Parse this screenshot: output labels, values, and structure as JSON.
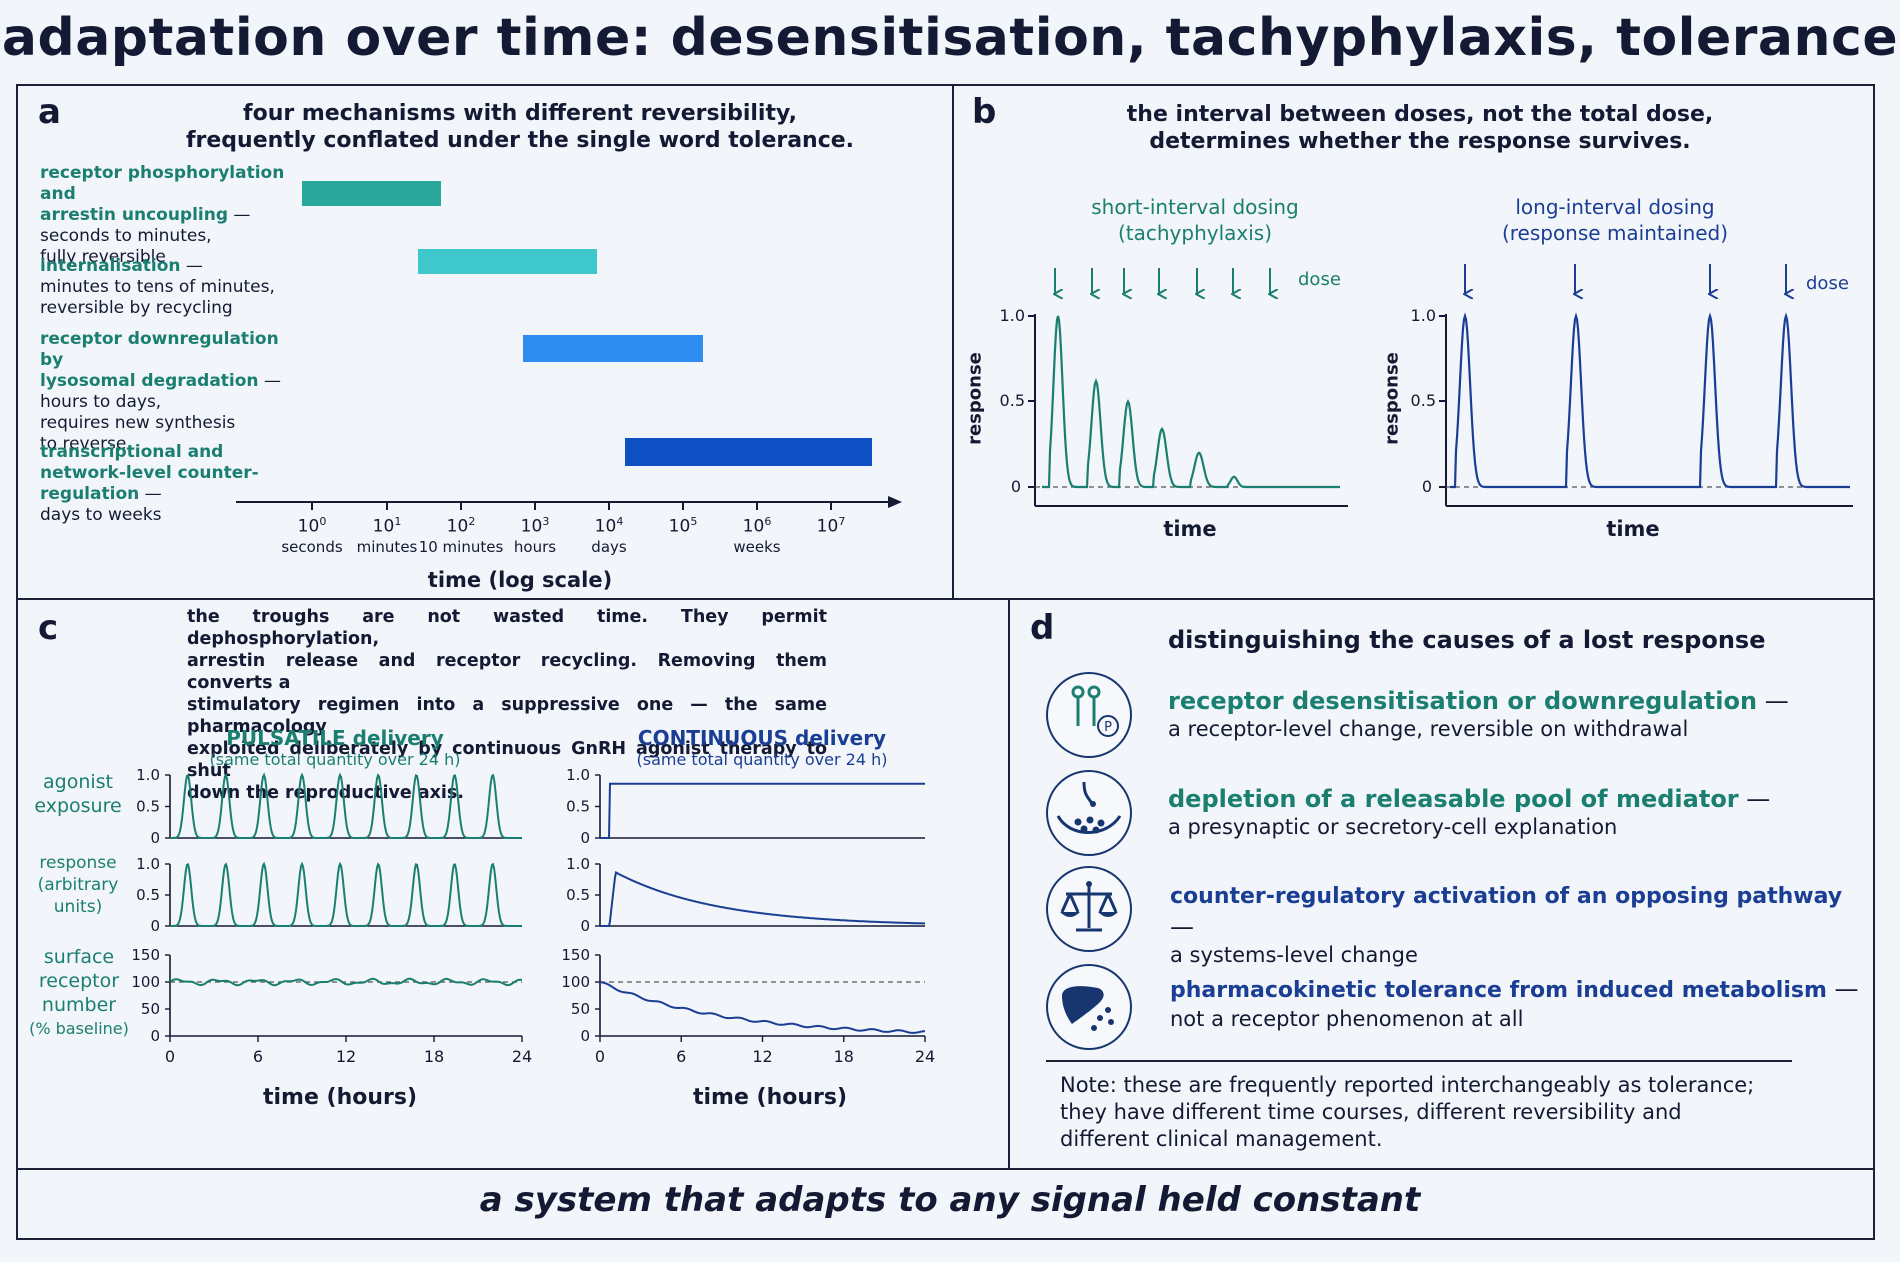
{
  "page": {
    "title": "adaptation over time: desensitisation, tachyphylaxis, tolerance",
    "footer": "a system that adapts to any signal held constant"
  },
  "colors": {
    "teal": "#1a7f70",
    "navy": "#1b3e95",
    "bar1": "#2aa79b",
    "bar2": "#3ec8cc",
    "bar3": "#2f8cf0",
    "bar4": "#0f4fc4",
    "frame": "#1b2237",
    "background": "#f2f5f9"
  },
  "panel_a": {
    "label": "a",
    "title_line1": "four mechanisms with different reversibility,",
    "title_line2": "frequently conflated under the single word tolerance.",
    "mechanisms": [
      {
        "highlight": [
          "receptor phosphorylation and",
          "arrestin uncoupling"
        ],
        "detail": [
          "seconds to minutes,",
          "fully reversible"
        ]
      },
      {
        "highlight": [
          "internalisation"
        ],
        "detail": [
          "minutes to tens of minutes,",
          "reversible by recycling"
        ]
      },
      {
        "highlight": [
          "receptor downregulation by",
          "lysosomal degradation"
        ],
        "detail": [
          "hours to days,",
          "requires new synthesis",
          "to reverse"
        ]
      },
      {
        "highlight": [
          "transcriptional and",
          "network-level counter-",
          "regulation"
        ],
        "detail": [
          "days to weeks"
        ]
      }
    ],
    "axis_label": "time (log scale)",
    "ticks": [
      {
        "exp": "0",
        "unit": "seconds"
      },
      {
        "exp": "1",
        "unit": "minutes"
      },
      {
        "exp": "2",
        "unit": "10 minutes"
      },
      {
        "exp": "3",
        "unit": "hours"
      },
      {
        "exp": "4",
        "unit": "days"
      },
      {
        "exp": "5",
        "unit": ""
      },
      {
        "exp": "6",
        "unit": "weeks"
      },
      {
        "exp": "7",
        "unit": ""
      }
    ]
  },
  "panel_b": {
    "label": "b",
    "title_line1": "the interval between doses, not the total dose,",
    "title_line2": "determines whether the response survives.",
    "left_title_line1": "short-interval dosing",
    "left_title_line2": "(tachyphylaxis)",
    "right_title_line1": "long-interval dosing",
    "right_title_line2": "(response maintained)",
    "dose_label": "dose",
    "y_label": "response",
    "x_label": "time",
    "yticks": [
      "1.0",
      "0.5",
      "0"
    ]
  },
  "panel_c": {
    "label": "c",
    "note_lines": [
      "the troughs are not wasted time. They permit dephosphorylation,",
      "arrestin release and receptor recycling. Removing them converts a",
      "stimulatory regimen into a suppressive one — the same pharmacology",
      "exploited deliberately by continuous GnRH agonist therapy to shut",
      "down the reproductive axis."
    ],
    "pulsatile_title": "PULSATILE delivery",
    "pulsatile_sub": "(same total quantity over 24 h)",
    "continuous_title": "CONTINUOUS delivery",
    "continuous_sub": "(same total quantity over 24 h)",
    "row_labels": [
      [
        "agonist",
        "exposure"
      ],
      [
        "response",
        "(arbitrary",
        "units)"
      ],
      [
        "surface",
        "receptor",
        "number",
        "(% baseline)"
      ]
    ],
    "ticks_01": [
      "1.0",
      "0.5",
      "0"
    ],
    "ticks_pct": [
      "150",
      "100",
      "50",
      "0"
    ],
    "xticks": [
      "0",
      "6",
      "12",
      "18",
      "24"
    ],
    "x_label": "time (hours)"
  },
  "panel_d": {
    "label": "d",
    "title": "distinguishing the causes of a lost response",
    "causes": [
      {
        "icon": "receptor-phospho-icon",
        "head": "receptor desensitisation or downregulation",
        "dash": " —",
        "detail": "a receptor-level change, reversible on withdrawal",
        "color": "teal"
      },
      {
        "icon": "vesicle-release-icon",
        "head": "depletion of a releasable pool of mediator",
        "dash": " —",
        "detail": "a presynaptic or secretory-cell explanation",
        "color": "teal"
      },
      {
        "icon": "balance-scale-icon",
        "head": "counter-regulatory activation of an opposing pathway",
        "dash": " —",
        "detail": "a systems-level change",
        "color": "navy"
      },
      {
        "icon": "liver-icon",
        "head": "pharmacokinetic tolerance from induced metabolism",
        "dash": " —",
        "detail": "not a receptor phenomenon at all",
        "color": "navy"
      }
    ],
    "note_lines": [
      "Note: these are frequently reported interchangeably as tolerance;",
      "they have different time courses, different reversibility and",
      "different clinical management."
    ]
  }
}
